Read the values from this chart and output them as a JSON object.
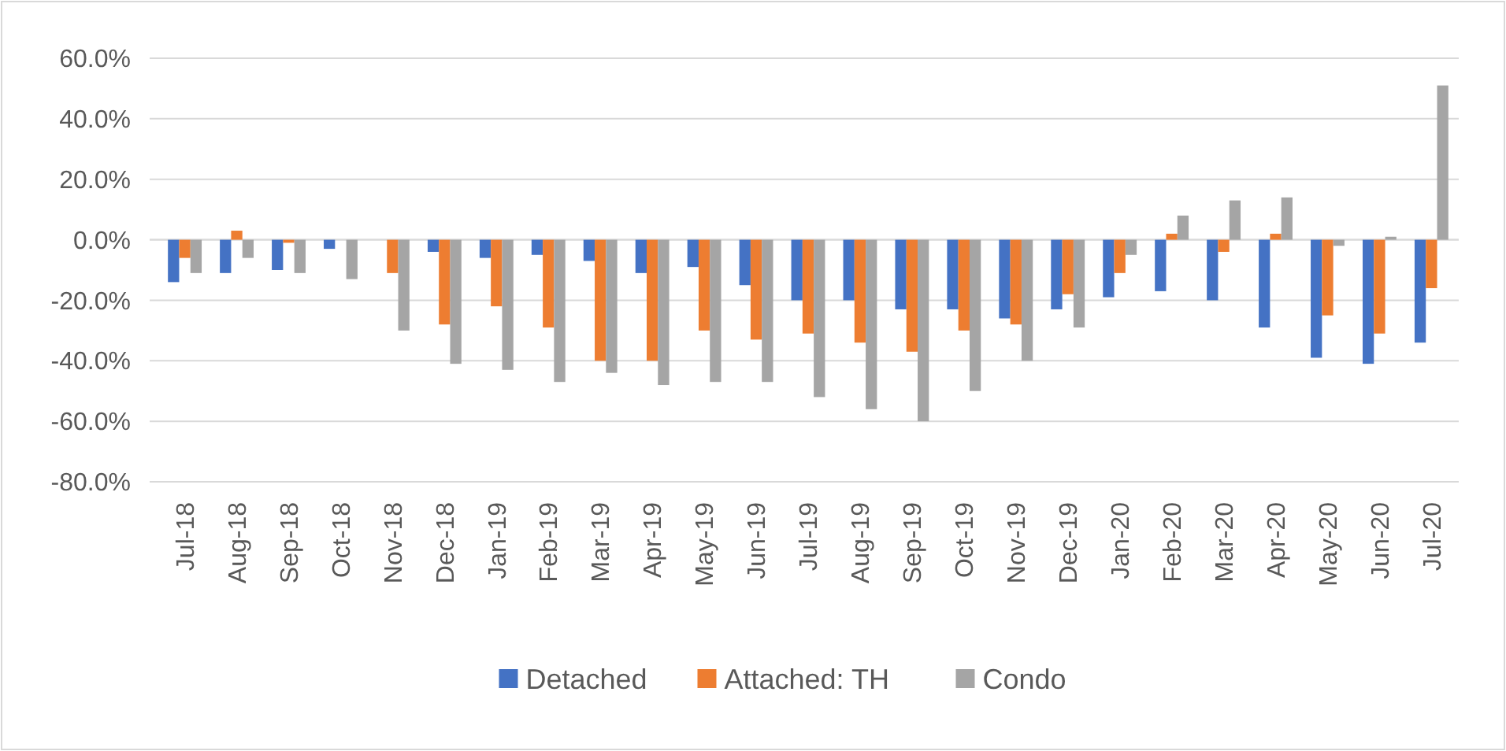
{
  "chart_data": {
    "type": "bar",
    "categories": [
      "Jul-18",
      "Aug-18",
      "Sep-18",
      "Oct-18",
      "Nov-18",
      "Dec-18",
      "Jan-19",
      "Feb-19",
      "Mar-19",
      "Apr-19",
      "May-19",
      "Jun-19",
      "Jul-19",
      "Aug-19",
      "Sep-19",
      "Oct-19",
      "Nov-19",
      "Dec-19",
      "Jan-20",
      "Feb-20",
      "Mar-20",
      "Apr-20",
      "May-20",
      "Jun-20",
      "Jul-20"
    ],
    "series": [
      {
        "name": "Detached",
        "color": "#4472c4",
        "values": [
          -14,
          -11,
          -10,
          -3,
          0,
          -4,
          -6,
          -5,
          -7,
          -11,
          -9,
          -15,
          -20,
          -20,
          -23,
          -23,
          -26,
          -23,
          -19,
          -17,
          -20,
          -29,
          -39,
          -41,
          -34
        ]
      },
      {
        "name": "Attached: TH",
        "color": "#ed7d31",
        "values": [
          -6,
          3,
          -1,
          0,
          -11,
          -28,
          -22,
          -29,
          -40,
          -40,
          -30,
          -33,
          -31,
          -34,
          -37,
          -30,
          -28,
          -18,
          -11,
          2,
          -4,
          2,
          -25,
          -31,
          -16
        ]
      },
      {
        "name": "Condo",
        "color": "#a5a5a5",
        "values": [
          -11,
          -6,
          -11,
          -13,
          -30,
          -41,
          -43,
          -47,
          -44,
          -48,
          -47,
          -47,
          -52,
          -56,
          -60,
          -50,
          -40,
          -29,
          -5,
          8,
          13,
          14,
          -2,
          1,
          51
        ]
      }
    ],
    "ylim": [
      -80,
      60
    ],
    "yticks": [
      {
        "value": -80,
        "label": "-80.0%"
      },
      {
        "value": -60,
        "label": "-60.0%"
      },
      {
        "value": -40,
        "label": "-40.0%"
      },
      {
        "value": -20,
        "label": "-20.0%"
      },
      {
        "value": 0,
        "label": "0.0%"
      },
      {
        "value": 20,
        "label": "20.0%"
      },
      {
        "value": 40,
        "label": "40.0%"
      },
      {
        "value": 60,
        "label": "60.0%"
      }
    ],
    "grid": "y",
    "legend": "bottom"
  }
}
